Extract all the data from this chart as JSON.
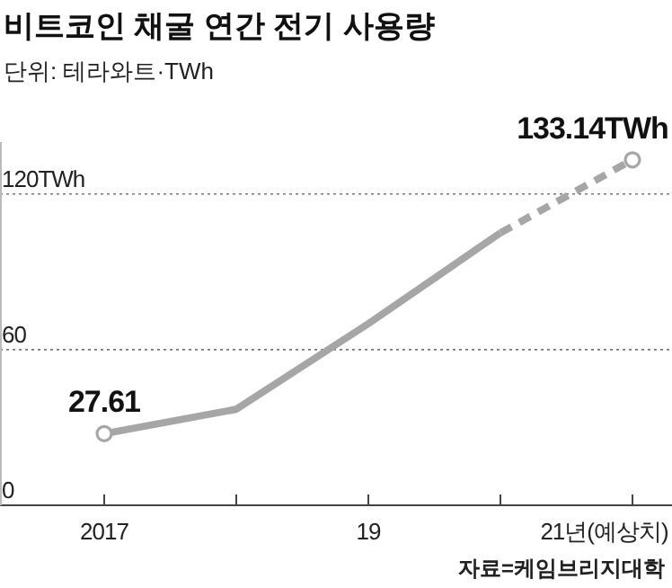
{
  "chart_data": {
    "type": "line",
    "title": "비트코인 채굴 연간 전기 사용량",
    "subtitle": "단위: 테라와트·TWh",
    "categories": [
      "2017",
      null,
      "19",
      null,
      "21년(예상치)"
    ],
    "series": [
      {
        "color": "#a6a6a6",
        "values": [
          27.61,
          37,
          70,
          105,
          null
        ],
        "line_style": "solid"
      },
      {
        "color": "#a6a6a6",
        "values": [
          null,
          null,
          null,
          105,
          133.14
        ],
        "line_style": "dashed"
      },
      {
        "type": "scatter",
        "color": "#a6a6a6",
        "values": [
          27.61,
          null,
          null,
          null,
          133.14
        ],
        "marker": "circle",
        "value_labels": [
          "27.61",
          null,
          null,
          null,
          "133.14TWh"
        ]
      }
    ],
    "ylim": [
      0,
      140
    ],
    "yticks": [
      0,
      60,
      {
        "value": 120,
        "label": "120TWh"
      }
    ],
    "grid": "y",
    "annotations": [
      "자료=케임브리지대학"
    ]
  }
}
